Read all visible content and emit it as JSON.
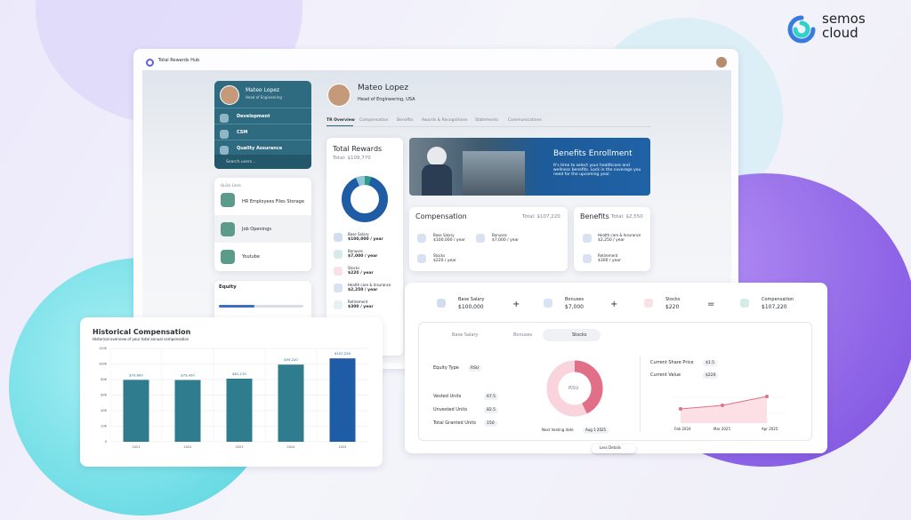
{
  "brand": {
    "name": "semos",
    "sub": "cloud"
  },
  "app": {
    "title": "Total Rewards Hub"
  },
  "sidebar": {
    "user": {
      "name": "Mateo Lopez",
      "role": "Head of Engineering"
    },
    "teams": [
      "Development",
      "CSM",
      "Quality Assurance"
    ],
    "search": "Search users..."
  },
  "quick_links": {
    "title": "Quick Links",
    "items": [
      "HR Employees Files Storage",
      "Job Openings",
      "Youtube"
    ]
  },
  "equity_card": {
    "title": "Equity"
  },
  "profile": {
    "name": "Mateo Lopez",
    "role": "Head of Engineering, USA"
  },
  "tabs": [
    "TR Overview",
    "Compensation",
    "Benefits",
    "Awards & Recognitions",
    "Statements",
    "Communications"
  ],
  "total_rewards": {
    "title": "Total Rewards",
    "total": "Total: $109,770",
    "items": [
      {
        "label": "Base Salary",
        "value": "$100,000 / year"
      },
      {
        "label": "Bonuses",
        "value": "$7,000 / year"
      },
      {
        "label": "Stocks",
        "value": "$220 / year"
      },
      {
        "label": "Health care & Insurance",
        "value": "$2,250 / year"
      },
      {
        "label": "Retirement",
        "value": "$300 / year"
      }
    ]
  },
  "banner": {
    "title": "Benefits Enrollment",
    "text": "It's time to select your healthcare and wellness benefits. Lock in the coverage you need for the upcoming year."
  },
  "compensation": {
    "title": "Compensation",
    "total": "Total: $107,220",
    "items": [
      {
        "label": "Base Salary",
        "value": "$100,000 / year"
      },
      {
        "label": "Bonuses",
        "value": "$7,000 / year"
      },
      {
        "label": "Stocks",
        "value": "$220 / year"
      }
    ]
  },
  "benefits": {
    "title": "Benefits",
    "total": "Total: $2,550",
    "items": [
      {
        "label": "Health care & Insurance",
        "value": "$2,250 / year"
      },
      {
        "label": "Retirement",
        "value": "$300 / year"
      }
    ]
  },
  "breakdown": {
    "items": [
      {
        "label": "Base Salary",
        "value": "$100,000"
      },
      {
        "label": "Bonuses",
        "value": "$7,000"
      },
      {
        "label": "Stocks",
        "value": "$220"
      },
      {
        "label": "Compensation",
        "value": "$107,220"
      }
    ],
    "operators": [
      "+",
      "+",
      "="
    ],
    "tabs": [
      "Base Salary",
      "Bonuses",
      "Stocks"
    ],
    "equity_type": {
      "label": "Equity Type",
      "value": "RSU"
    },
    "units": [
      {
        "label": "Vested Units",
        "value": 67.5
      },
      {
        "label": "Unvested Units",
        "value": 82.5
      },
      {
        "label": "Total Granted Units",
        "value": 150
      }
    ],
    "donut_label": "RSU",
    "next_vesting": {
      "label": "Next Vesting date",
      "value": "Aug 1 2025"
    },
    "share_price": {
      "label": "Current Share Price",
      "value": "$1.5"
    },
    "current_value": {
      "label": "Current Value",
      "value": "$220"
    },
    "chart_x": [
      "Feb 2024",
      "Mar 2025",
      "Apr 2025"
    ],
    "button": "Less Details"
  },
  "chart_data": {
    "type": "bar",
    "title": "Historical Compensation",
    "subtitle": "Historical overview of your total annual compensation",
    "categories": [
      "2021",
      "2022",
      "2023",
      "2024",
      "2025"
    ],
    "values": [
      79600,
      79430,
      81170,
      99220,
      107220
    ],
    "value_labels": [
      "$79,600",
      "$79,430",
      "$81,170",
      "$99,220",
      "$107,220"
    ],
    "colors": [
      "#2e7c8e",
      "#2e7c8e",
      "#2e7c8e",
      "#2e7c8e",
      "#1f5ca6"
    ],
    "ylim": [
      0,
      120000
    ],
    "yticks": [
      {
        "value": 0,
        "label": "0"
      },
      {
        "value": 20000,
        "label": "20K"
      },
      {
        "value": 40000,
        "label": "40K"
      },
      {
        "value": 60000,
        "label": "60K"
      },
      {
        "value": 80000,
        "label": "80K"
      },
      {
        "value": 100000,
        "label": "100K"
      },
      {
        "value": 120000,
        "label": "120K"
      }
    ],
    "grid": true
  }
}
